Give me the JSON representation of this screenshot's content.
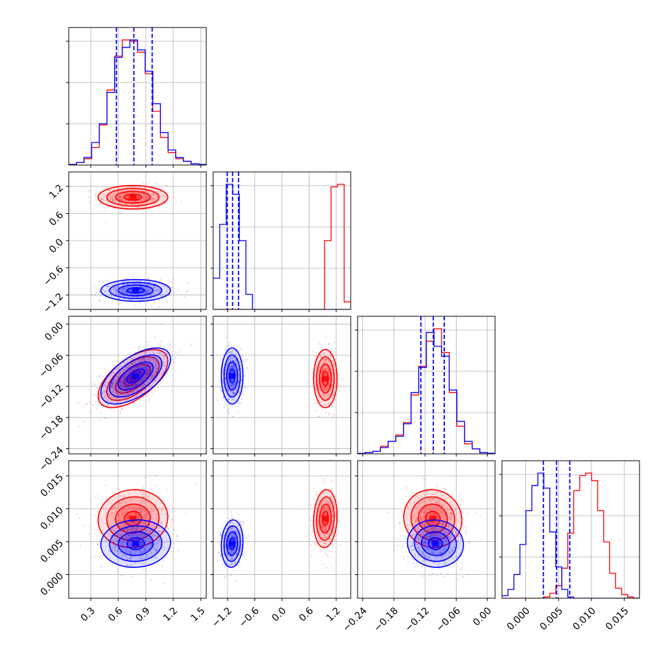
{
  "colors": {
    "series_a": "#ff0000",
    "series_b": "#0000ff",
    "grid": "#b0b0b0",
    "axis": "#000000"
  },
  "chart_data": {
    "type": "corner",
    "grid": true,
    "parameters": [
      {
        "range": [
          0.06,
          1.56
        ],
        "ticks": [
          0.3,
          0.6,
          0.9,
          1.2,
          1.5
        ],
        "tick_labels": [
          "0.3",
          "0.6",
          "0.9",
          "1.2",
          "1.5"
        ]
      },
      {
        "range": [
          -1.52,
          1.52
        ],
        "ticks": [
          -1.2,
          -0.6,
          0.0,
          0.6,
          1.2
        ],
        "tick_labels": [
          "−1.2",
          "−0.6",
          "0.0",
          "0.6",
          "1.2"
        ]
      },
      {
        "range": [
          -0.25,
          0.015
        ],
        "ticks": [
          -0.24,
          -0.18,
          -0.12,
          -0.06,
          0.0
        ],
        "tick_labels": [
          "−0.24",
          "−0.18",
          "−0.12",
          "−0.06",
          "0.00"
        ]
      },
      {
        "range": [
          -0.0036,
          0.0173
        ],
        "ticks": [
          0.0,
          0.005,
          0.01,
          0.015
        ],
        "tick_labels": [
          "0.000",
          "0.005",
          "0.010",
          "0.015"
        ]
      }
    ],
    "series": [
      {
        "color": "#ff0000",
        "mean": [
          0.76,
          0.96,
          -0.105,
          0.0085
        ],
        "sd": [
          0.19,
          0.13,
          0.028,
          0.0022
        ],
        "hist": [
          [
            0.005,
            0.02,
            0.05,
            0.14,
            0.32,
            0.6,
            0.87,
            1.0,
            0.99,
            0.9,
            0.73,
            0.43,
            0.22,
            0.1,
            0.05,
            0.03,
            0.01,
            0.005
          ],
          [
            0.0,
            0.0,
            0.0,
            0.0,
            0.0,
            0.0,
            0.0,
            0.0,
            0.0,
            0.0,
            0.0,
            0.0,
            0.0,
            0.0,
            0.0,
            0.0,
            0.0,
            0.55,
            0.98,
            1.0,
            0.06
          ],
          [
            0.003,
            0.01,
            0.02,
            0.06,
            0.1,
            0.15,
            0.25,
            0.47,
            0.7,
            0.9,
            1.0,
            0.81,
            0.49,
            0.22,
            0.08,
            0.04,
            0.01,
            0.005
          ],
          [
            0.0,
            0.0,
            0.0,
            0.0,
            0.0,
            0.0,
            0.0,
            0.01,
            0.04,
            0.1,
            0.24,
            0.52,
            0.86,
            0.98,
            1.0,
            0.94,
            0.7,
            0.45,
            0.2,
            0.08,
            0.03,
            0.01,
            0.0
          ]
        ]
      },
      {
        "color": "#0000ff",
        "mean": [
          0.79,
          -1.1,
          -0.1,
          0.0047
        ],
        "sd": [
          0.19,
          0.12,
          0.027,
          0.0018
        ],
        "hist": [
          [
            0.005,
            0.02,
            0.06,
            0.18,
            0.33,
            0.58,
            0.86,
            0.94,
            1.0,
            0.92,
            0.75,
            0.49,
            0.26,
            0.12,
            0.06,
            0.03,
            0.01,
            0.005
          ],
          [
            0.25,
            0.68,
            1.0,
            0.92,
            0.55,
            0.12,
            0.0,
            0.0,
            0.0,
            0.0,
            0.0,
            0.0,
            0.0,
            0.0,
            0.0,
            0.0,
            0.0,
            0.0,
            0.0,
            0.0,
            0.0
          ],
          [
            0.003,
            0.01,
            0.02,
            0.05,
            0.1,
            0.14,
            0.24,
            0.49,
            0.69,
            0.97,
            0.86,
            0.78,
            0.51,
            0.26,
            0.1,
            0.04,
            0.01,
            0.005
          ],
          [
            0.02,
            0.07,
            0.19,
            0.43,
            0.7,
            0.9,
            1.0,
            0.88,
            0.53,
            0.25,
            0.07,
            0.01,
            0.0,
            0.0,
            0.0,
            0.0,
            0.0,
            0.0,
            0.0,
            0.0,
            0.0,
            0.0,
            0.0
          ]
        ]
      }
    ],
    "correlations": [
      [
        0,
        2,
        0.6
      ],
      [
        0,
        3,
        0.05
      ],
      [
        1,
        2,
        0.0
      ],
      [
        1,
        3,
        0.1
      ],
      [
        2,
        3,
        -0.05
      ]
    ],
    "quantiles": [
      [
        0.58,
        0.77,
        0.97
      ],
      [
        -1.21,
        -1.09,
        -0.96
      ],
      [
        -0.128,
        -0.104,
        -0.083
      ],
      [
        0.0027,
        0.0047,
        0.0067
      ]
    ],
    "quantile_color": "#0000ff",
    "n_points": 380
  }
}
